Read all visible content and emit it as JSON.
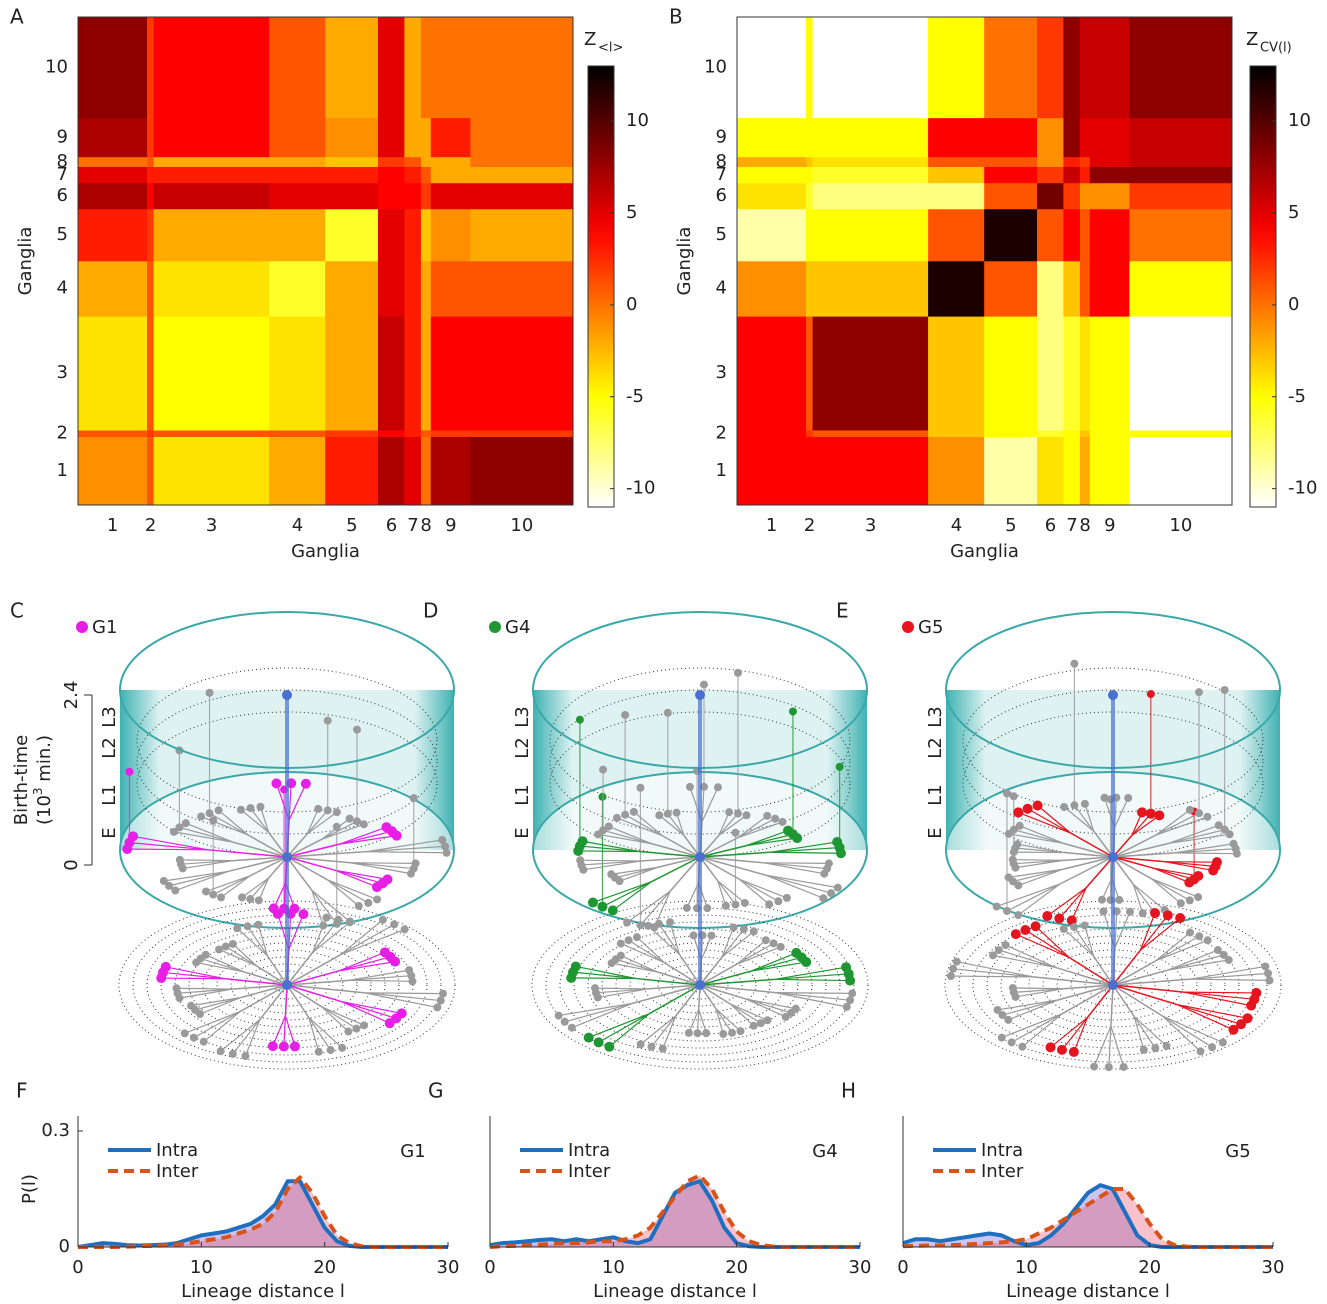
{
  "chart_data": [
    {
      "type": "heatmap",
      "panel": "A",
      "categories": [
        "1",
        "2",
        "3",
        "4",
        "5",
        "6",
        "7",
        "8",
        "9",
        "10"
      ],
      "edges": [
        0,
        21,
        23,
        58,
        75,
        91,
        99,
        104,
        107,
        119,
        150
      ],
      "z": [
        [
          -1,
          1,
          -4,
          -2,
          3,
          7,
          5,
          0,
          7,
          8
        ],
        [
          1,
          2,
          1,
          1,
          2,
          4,
          3,
          1,
          2,
          2
        ],
        [
          -4,
          1,
          -5,
          -4,
          -2,
          6,
          3,
          -2,
          4,
          4
        ],
        [
          -2,
          1,
          -4,
          -6,
          -2,
          5,
          3,
          -2,
          1,
          1
        ],
        [
          3,
          2,
          -2,
          -2,
          -6,
          5,
          3,
          -3,
          -1,
          -2
        ],
        [
          7,
          4,
          6,
          5,
          5,
          4,
          4,
          2,
          5,
          5
        ],
        [
          5,
          3,
          3,
          3,
          3,
          4,
          3,
          1,
          -2,
          -2
        ],
        [
          0,
          1,
          -2,
          -2,
          -3,
          2,
          1,
          -2,
          -2,
          0
        ],
        [
          7,
          2,
          4,
          1,
          -1,
          5,
          -2,
          -2,
          3,
          0
        ],
        [
          8,
          2,
          4,
          1,
          -2,
          5,
          -2,
          0,
          0,
          0
        ]
      ],
      "xlabel": "Ganglia",
      "ylabel": "Ganglia",
      "colorbar_label": "Z",
      "colorbar_label_sub": "<l>",
      "clim": [
        -11,
        13
      ],
      "colorbar_ticks": [
        -10,
        -5,
        0,
        5,
        10
      ],
      "colormap": "hot_r"
    },
    {
      "type": "heatmap",
      "panel": "B",
      "categories": [
        "1",
        "2",
        "3",
        "4",
        "5",
        "6",
        "7",
        "8",
        "9",
        "10"
      ],
      "edges": [
        0,
        21,
        23,
        58,
        75,
        91,
        99,
        104,
        107,
        119,
        150
      ],
      "z": [
        [
          4,
          4,
          4,
          -1,
          -9,
          -4,
          -5,
          -2,
          -5,
          -13
        ],
        [
          4,
          2,
          1,
          -3,
          -5,
          -6,
          -5,
          -3,
          -5,
          -5
        ],
        [
          4,
          1,
          8,
          -3,
          -5,
          -8,
          -6,
          -4,
          -5,
          -13
        ],
        [
          -1,
          -3,
          -3,
          12,
          1,
          -8,
          -3,
          1,
          4,
          -5
        ],
        [
          -9,
          -5,
          -5,
          1,
          12,
          1,
          4,
          1,
          4,
          0
        ],
        [
          -4,
          -6,
          -8,
          -8,
          1,
          9,
          2,
          -1,
          -1,
          2
        ],
        [
          -5,
          -5,
          -6,
          -3,
          4,
          2,
          6,
          3,
          8,
          8
        ],
        [
          -2,
          -3,
          -4,
          1,
          1,
          -1,
          3,
          2,
          5,
          6
        ],
        [
          -5,
          -5,
          -5,
          4,
          4,
          -1,
          8,
          5,
          5,
          6
        ],
        [
          -13,
          -5,
          -13,
          -5,
          0,
          2,
          8,
          6,
          6,
          8
        ]
      ],
      "xlabel": "Ganglia",
      "ylabel": "Ganglia",
      "colorbar_label": "Z",
      "colorbar_label_sub": "CV(l)",
      "clim": [
        -11,
        13
      ],
      "colorbar_ticks": [
        -10,
        -5,
        0,
        5,
        10
      ],
      "colormap": "hot_r"
    },
    {
      "type": "line",
      "panel": "F",
      "group_label": "G1",
      "group_color": "#e61ee6",
      "x": [
        0,
        1,
        2,
        3,
        4,
        5,
        6,
        7,
        8,
        9,
        10,
        11,
        12,
        13,
        14,
        15,
        16,
        17,
        18,
        19,
        20,
        21,
        22,
        23,
        24,
        25,
        26,
        27,
        28,
        29,
        30
      ],
      "series": [
        {
          "name": "Intra",
          "color": "#1f6fc0",
          "values": [
            0,
            0.005,
            0.01,
            0.008,
            0.005,
            0.004,
            0.005,
            0.006,
            0.01,
            0.02,
            0.03,
            0.035,
            0.04,
            0.05,
            0.06,
            0.08,
            0.11,
            0.17,
            0.17,
            0.11,
            0.05,
            0.015,
            0.003,
            0,
            0,
            0,
            0,
            0,
            0,
            0,
            0
          ]
        },
        {
          "name": "Inter",
          "color": "#d95319",
          "dashed": true,
          "values": [
            0,
            0,
            0,
            0,
            0.001,
            0.002,
            0.003,
            0.004,
            0.006,
            0.01,
            0.015,
            0.02,
            0.025,
            0.035,
            0.045,
            0.06,
            0.09,
            0.15,
            0.18,
            0.14,
            0.08,
            0.03,
            0.01,
            0.002,
            0,
            0,
            0,
            0,
            0,
            0,
            0
          ]
        }
      ],
      "xlim": [
        0,
        30
      ],
      "xticks": [
        0,
        10,
        20,
        30
      ],
      "ylim": [
        0,
        0.3
      ],
      "yticks": [
        0,
        0.3
      ],
      "xlabel": "Lineage distance l",
      "ylabel": "P(l)"
    },
    {
      "type": "line",
      "panel": "G",
      "group_label": "G4",
      "group_color": "#1e9632",
      "x": [
        0,
        1,
        2,
        3,
        4,
        5,
        6,
        7,
        8,
        9,
        10,
        11,
        12,
        13,
        14,
        15,
        16,
        17,
        18,
        19,
        20,
        21,
        22,
        23,
        24,
        25,
        26,
        27,
        28,
        29,
        30
      ],
      "series": [
        {
          "name": "Intra",
          "color": "#1f6fc0",
          "values": [
            0.005,
            0.01,
            0.012,
            0.015,
            0.018,
            0.02,
            0.015,
            0.02,
            0.015,
            0.02,
            0.025,
            0.015,
            0.01,
            0.02,
            0.08,
            0.14,
            0.16,
            0.17,
            0.12,
            0.05,
            0.01,
            0.002,
            0,
            0,
            0,
            0,
            0,
            0,
            0,
            0,
            0
          ]
        },
        {
          "name": "Inter",
          "color": "#d95319",
          "dashed": true,
          "values": [
            0,
            0.002,
            0.003,
            0.005,
            0.006,
            0.008,
            0.01,
            0.01,
            0.012,
            0.015,
            0.015,
            0.02,
            0.03,
            0.05,
            0.09,
            0.13,
            0.17,
            0.185,
            0.15,
            0.09,
            0.04,
            0.015,
            0.005,
            0.001,
            0,
            0,
            0,
            0,
            0,
            0,
            0
          ]
        }
      ],
      "xlim": [
        0,
        30
      ],
      "xticks": [
        0,
        10,
        20,
        30
      ],
      "ylim": [
        0,
        0.3
      ],
      "xlabel": "Lineage distance l"
    },
    {
      "type": "line",
      "panel": "H",
      "group_label": "G5",
      "group_color": "#e6141e",
      "x": [
        0,
        1,
        2,
        3,
        4,
        5,
        6,
        7,
        8,
        9,
        10,
        11,
        12,
        13,
        14,
        15,
        16,
        17,
        18,
        19,
        20,
        21,
        22,
        23,
        24,
        25,
        26,
        27,
        28,
        29,
        30
      ],
      "series": [
        {
          "name": "Intra",
          "color": "#1f6fc0",
          "values": [
            0.01,
            0.02,
            0.02,
            0.015,
            0.02,
            0.025,
            0.03,
            0.035,
            0.03,
            0.015,
            0.005,
            0.01,
            0.03,
            0.06,
            0.1,
            0.14,
            0.16,
            0.15,
            0.09,
            0.03,
            0.005,
            0,
            0,
            0,
            0,
            0,
            0,
            0,
            0,
            0,
            0
          ]
        },
        {
          "name": "Inter",
          "color": "#d95319",
          "dashed": true,
          "values": [
            0.002,
            0.003,
            0.004,
            0.004,
            0.005,
            0.006,
            0.008,
            0.01,
            0.012,
            0.015,
            0.02,
            0.035,
            0.05,
            0.07,
            0.09,
            0.11,
            0.13,
            0.15,
            0.15,
            0.11,
            0.06,
            0.02,
            0.005,
            0.001,
            0,
            0,
            0,
            0,
            0,
            0,
            0
          ]
        }
      ],
      "xlim": [
        0,
        30
      ],
      "xticks": [
        0,
        10,
        20,
        30
      ],
      "ylim": [
        0,
        0.3
      ],
      "xlabel": "Lineage distance l"
    }
  ],
  "tree_panels": [
    {
      "panel": "C",
      "legend": "G1",
      "color": "#e61ee6"
    },
    {
      "panel": "D",
      "legend": "G4",
      "color": "#1e9632"
    },
    {
      "panel": "E",
      "legend": "G5",
      "color": "#e6141e"
    }
  ],
  "birth_axis": {
    "title": "Birth-time",
    "unit": [
      "(10",
      "3",
      " min.)"
    ],
    "ylim": [
      0,
      2.4
    ],
    "yticks": [
      0,
      2.4
    ],
    "stages": [
      "E",
      "L1",
      "L2",
      "L3"
    ]
  }
}
